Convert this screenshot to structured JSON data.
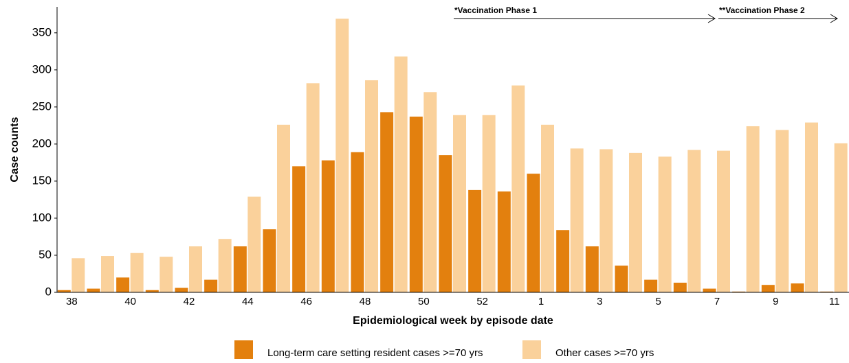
{
  "chart_data": {
    "type": "bar",
    "x_label": "Epidemiological week by episode date",
    "y_label": "Case counts",
    "annotations": [
      "*Vaccination Phase 1",
      "**Vaccination Phase 2"
    ],
    "categories": [
      "38",
      null,
      "40",
      null,
      "42",
      null,
      "44",
      null,
      "46",
      null,
      "48",
      null,
      "50",
      null,
      "52",
      null,
      "1",
      null,
      "3",
      null,
      "5",
      null,
      "7",
      null,
      "9",
      null,
      "11"
    ],
    "series": [
      {
        "name": "Long-term care setting resident cases >=70 yrs",
        "color": "#e3800e",
        "values": [
          3,
          5,
          20,
          3,
          6,
          17,
          62,
          85,
          170,
          178,
          189,
          243,
          237,
          185,
          138,
          136,
          160,
          84,
          62,
          36,
          17,
          13,
          5,
          1,
          10,
          12,
          1
        ]
      },
      {
        "name": "Other cases >=70 yrs",
        "color": "#fad19b",
        "values": [
          46,
          49,
          53,
          48,
          62,
          72,
          129,
          226,
          282,
          369,
          286,
          318,
          270,
          239,
          239,
          279,
          226,
          194,
          193,
          188,
          183,
          192,
          191,
          224,
          219,
          229,
          201
        ]
      }
    ],
    "ylim": [
      0,
      385
    ],
    "yticks": [
      0,
      50,
      100,
      150,
      200,
      250,
      300,
      350
    ],
    "grid": false
  }
}
